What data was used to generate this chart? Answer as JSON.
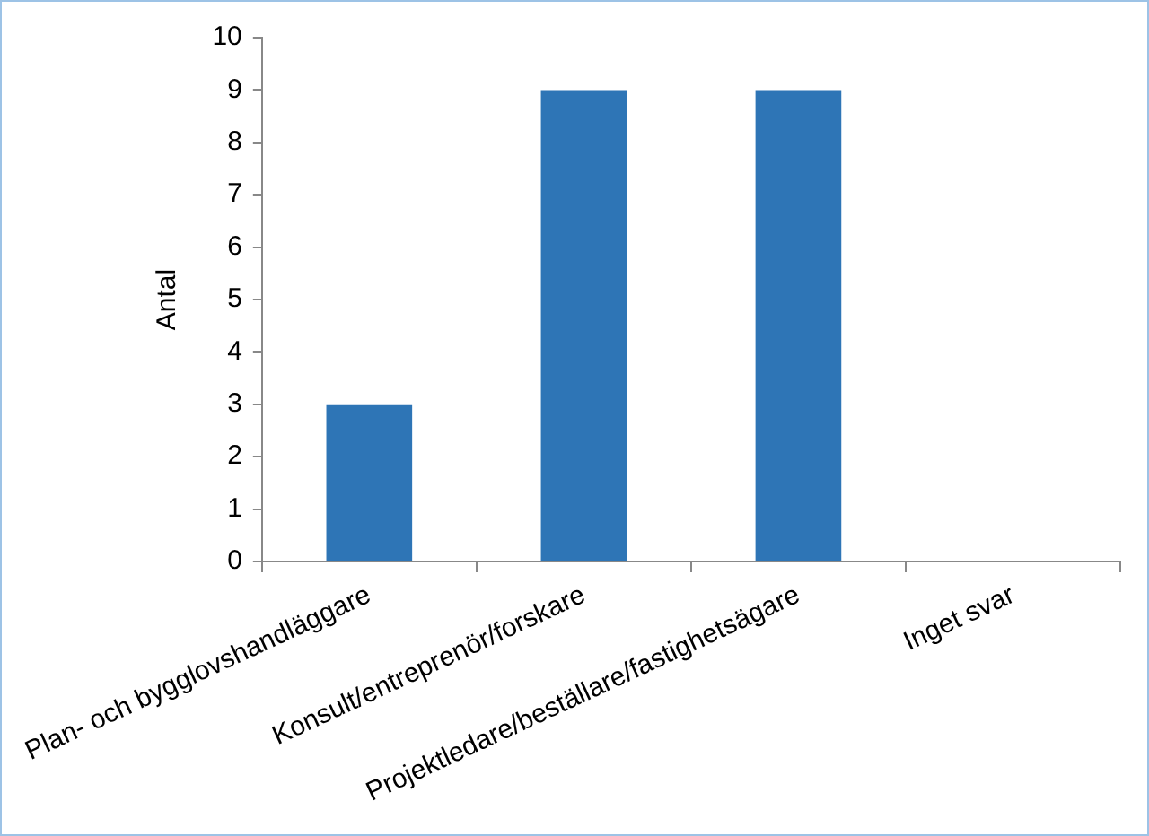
{
  "chart_data": {
    "type": "bar",
    "ylabel": "Antal",
    "categories": [
      "Plan- och bygglovshandläggare",
      "Konsult/entreprenör/forskare",
      "Projektledare/beställare/fastighetsägare",
      "Inget svar"
    ],
    "values": [
      3,
      9,
      9,
      0
    ],
    "color": "#2e75b6",
    "ylim": [
      0,
      10
    ],
    "yticks": [
      0,
      1,
      2,
      3,
      4,
      5,
      6,
      7,
      8,
      9,
      10
    ],
    "grid": false,
    "legend": false
  }
}
